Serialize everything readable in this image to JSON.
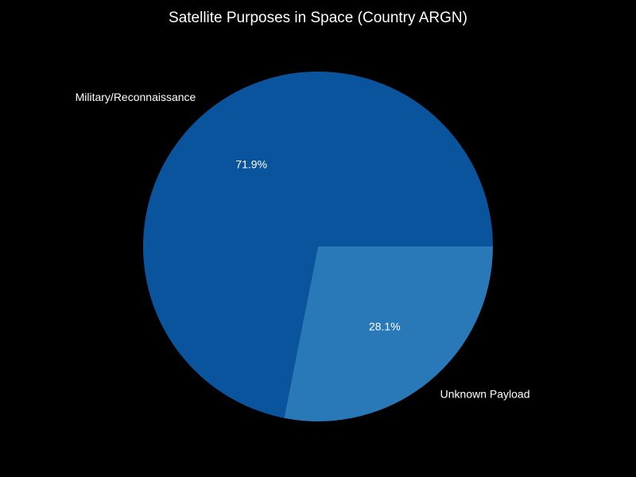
{
  "chart_data": {
    "type": "pie",
    "title": "Satellite Purposes in Space (Country ARGN)",
    "categories": [
      "Military/Reconnaissance",
      "Unknown Payload"
    ],
    "values": [
      71.9,
      28.1
    ],
    "percent_labels": [
      "71.9%",
      "28.1%"
    ],
    "colors": [
      "#0a549e",
      "#2979b9"
    ],
    "legend": "none",
    "start_angle_deg": 0,
    "direction": "counterclockwise"
  },
  "colors": {
    "background": "#000000",
    "text": "#ffffff"
  }
}
